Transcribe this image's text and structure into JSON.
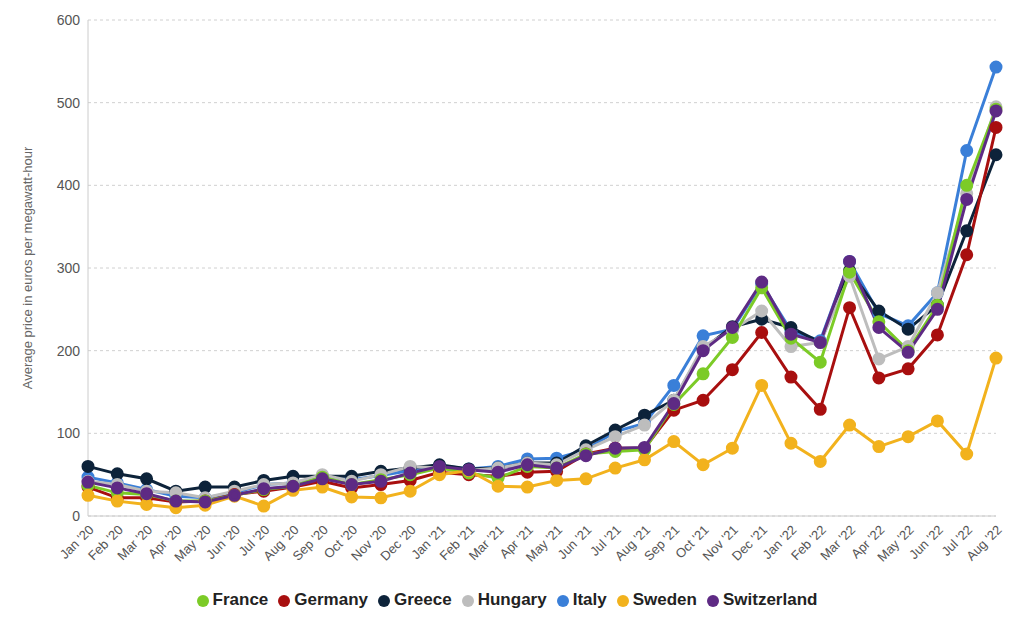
{
  "chart_data": {
    "type": "line",
    "y_label": "Average price in euros per megawatt-hour",
    "categories": [
      "Jan '20",
      "Feb '20",
      "Mar '20",
      "Apr '20",
      "May '20",
      "Jun '20",
      "Jul '20",
      "Aug '20",
      "Sep '20",
      "Oct '20",
      "Nov '20",
      "Dec '20",
      "Jan '21",
      "Feb '21",
      "Mar '21",
      "Apr '21",
      "May '21",
      "Jun '21",
      "Jul '21",
      "Aug '21",
      "Sep '21",
      "Oct '21",
      "Nov '21",
      "Dec '21",
      "Jan '22",
      "Feb '22",
      "Mar '22",
      "Apr '22",
      "May '22",
      "Jun '22",
      "Jul '22",
      "Aug '22"
    ],
    "series": [
      {
        "name": "Italy",
        "color": "#3a7fd8",
        "values": [
          47,
          40,
          32,
          24,
          22,
          28,
          38,
          40,
          48,
          44,
          49,
          55,
          61,
          57,
          60,
          69,
          70,
          80,
          102,
          112,
          158,
          218,
          226,
          281,
          224,
          212,
          308,
          245,
          230,
          270,
          442,
          543
        ]
      },
      {
        "name": "Greece",
        "color": "#0d233a",
        "values": [
          60,
          51,
          45,
          30,
          35,
          35,
          43,
          48,
          48,
          48,
          54,
          58,
          62,
          57,
          58,
          64,
          64,
          85,
          104,
          122,
          140,
          202,
          229,
          238,
          228,
          210,
          297,
          248,
          226,
          255,
          345,
          437
        ]
      },
      {
        "name": "Hungary",
        "color": "#bdbdbd",
        "values": [
          42,
          38,
          30,
          28,
          22,
          30,
          38,
          40,
          50,
          42,
          50,
          60,
          58,
          55,
          58,
          64,
          62,
          80,
          96,
          110,
          140,
          205,
          225,
          248,
          205,
          210,
          290,
          190,
          205,
          270,
          390,
          495
        ]
      },
      {
        "name": "Germany",
        "color": "#a80f0f",
        "values": [
          35,
          22,
          22,
          17,
          18,
          26,
          30,
          35,
          42,
          34,
          38,
          43,
          53,
          50,
          48,
          53,
          54,
          75,
          82,
          82,
          128,
          140,
          177,
          222,
          168,
          129,
          252,
          167,
          178,
          219,
          316,
          470
        ]
      },
      {
        "name": "France",
        "color": "#7ccb27",
        "values": [
          37,
          28,
          26,
          18,
          18,
          25,
          32,
          36,
          47,
          38,
          44,
          50,
          58,
          52,
          46,
          60,
          58,
          75,
          78,
          80,
          135,
          172,
          216,
          276,
          215,
          186,
          295,
          235,
          200,
          255,
          400,
          492
        ]
      },
      {
        "name": "Sweden",
        "color": "#f2b21d",
        "values": [
          25,
          18,
          14,
          10,
          13,
          24,
          12,
          31,
          35,
          23,
          22,
          30,
          50,
          55,
          36,
          35,
          43,
          45,
          58,
          68,
          90,
          62,
          82,
          158,
          88,
          66,
          110,
          84,
          96,
          115,
          75,
          191
        ]
      },
      {
        "name": "Switzerland",
        "color": "#5e2a84",
        "values": [
          41,
          34,
          27,
          18,
          17,
          25,
          33,
          36,
          45,
          38,
          42,
          52,
          60,
          56,
          53,
          62,
          58,
          73,
          82,
          83,
          136,
          200,
          228,
          283,
          220,
          210,
          308,
          228,
          198,
          250,
          383,
          490
        ]
      }
    ],
    "ylim": [
      0,
      600
    ],
    "yticks": [
      0,
      100,
      200,
      300,
      400,
      500,
      600
    ],
    "grid": true,
    "legend": "bottom",
    "marker": "circle"
  }
}
